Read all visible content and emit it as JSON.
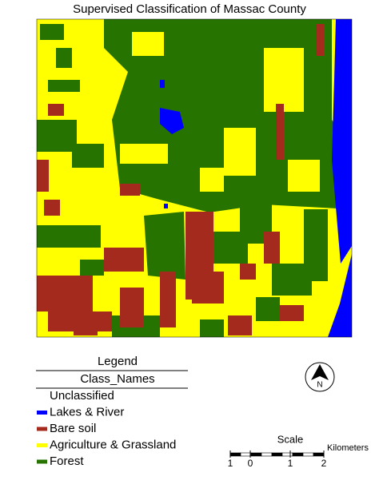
{
  "title": "Supervised Classification of Massac County",
  "legend": {
    "title": "Legend",
    "subtitle": "Class_Names",
    "items": [
      {
        "label": "Unclassified"
      },
      {
        "label": "Lakes & River",
        "color": "#0000ff"
      },
      {
        "label": "Bare soil",
        "color": "#a52a1e"
      },
      {
        "label": "Agriculture & Grassland",
        "color": "#ffff00"
      },
      {
        "label": "Forest",
        "color": "#267300"
      }
    ]
  },
  "north_arrow": {
    "label": "N"
  },
  "scale": {
    "title": "Scale",
    "unit": "Kilometers",
    "ticks": [
      "1",
      "0",
      "1",
      "2"
    ]
  }
}
